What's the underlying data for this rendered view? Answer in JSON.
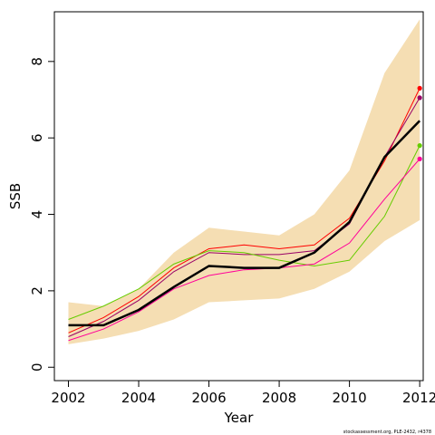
{
  "chart_data": {
    "type": "line",
    "xlabel": "Year",
    "ylabel": "SSB",
    "xlim": [
      2001.6,
      2012.1
    ],
    "ylim": [
      -0.35,
      9.3
    ],
    "x_ticks": [
      2002,
      2004,
      2006,
      2008,
      2010,
      2012
    ],
    "y_ticks": [
      0,
      2,
      4,
      6,
      8
    ],
    "x": [
      2002,
      2003,
      2004,
      2005,
      2006,
      2007,
      2008,
      2009,
      2010,
      2011,
      2012
    ],
    "band": {
      "color": "#f5deb3",
      "low": [
        0.6,
        0.75,
        0.95,
        1.25,
        1.7,
        1.75,
        1.8,
        2.05,
        2.5,
        3.3,
        3.85
      ],
      "high": [
        1.7,
        1.6,
        2.05,
        3.0,
        3.65,
        3.55,
        3.45,
        4.0,
        5.15,
        7.7,
        9.1
      ]
    },
    "estimate": {
      "color": "#000000",
      "values": [
        1.1,
        1.1,
        1.5,
        2.1,
        2.65,
        2.6,
        2.6,
        3.0,
        3.8,
        5.5,
        6.45
      ]
    },
    "series": [
      {
        "color": "#ff0000",
        "values": [
          0.9,
          1.3,
          1.85,
          2.6,
          3.1,
          3.2,
          3.1,
          3.2,
          3.9,
          5.4,
          7.3
        ]
      },
      {
        "color": "#990066",
        "values": [
          0.8,
          1.2,
          1.75,
          2.5,
          3.0,
          2.95,
          2.95,
          3.05,
          3.75,
          5.5,
          7.05
        ]
      },
      {
        "color": "#66cc00",
        "values": [
          1.25,
          1.6,
          2.05,
          2.7,
          3.05,
          3.0,
          2.8,
          2.65,
          2.8,
          3.95,
          5.8
        ]
      },
      {
        "color": "#ff0099",
        "values": [
          0.7,
          1.0,
          1.45,
          2.05,
          2.4,
          2.55,
          2.6,
          2.7,
          3.25,
          4.4,
          5.45
        ]
      }
    ],
    "grid": false,
    "credit": "stockassessment.org, PLE-2432, r4378"
  }
}
